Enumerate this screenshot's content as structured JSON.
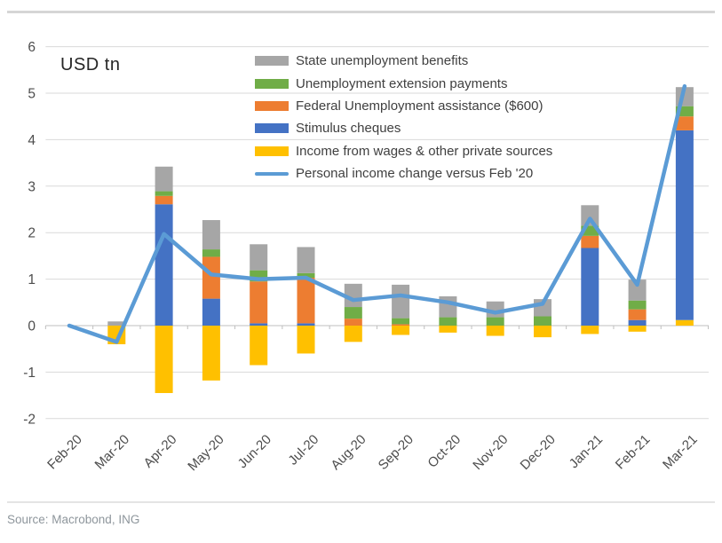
{
  "footer": {
    "source": "Source: Macrobond, ING"
  },
  "legend": {
    "items": [
      {
        "label": "State unemployment benefits",
        "color": "#a6a6a6",
        "kind": "bar",
        "icon": "gray-swatch"
      },
      {
        "label": "Unemployment extension payments",
        "color": "#70ad47",
        "kind": "bar",
        "icon": "green-swatch"
      },
      {
        "label": "Federal Unemployment assistance ($600)",
        "color": "#ed7d31",
        "kind": "bar",
        "icon": "orange-swatch"
      },
      {
        "label": "Stimulus cheques",
        "color": "#4472c4",
        "kind": "bar",
        "icon": "blue-swatch"
      },
      {
        "label": "Income from wages & other private sources",
        "color": "#ffc000",
        "kind": "bar",
        "icon": "yellow-swatch"
      },
      {
        "label": "Personal income change versus Feb '20",
        "color": "#5b9bd5",
        "kind": "line",
        "icon": "line-swatch"
      }
    ]
  },
  "chart_data": {
    "type": "bar",
    "subtype": "stacked-bars-with-line",
    "title": "",
    "unit_label": "USD tn",
    "xlabel": "",
    "ylabel": "USD tn",
    "ylim": [
      -2,
      6
    ],
    "y_ticks": [
      6,
      5,
      4,
      3,
      2,
      1,
      0,
      -1,
      -2
    ],
    "grid": true,
    "legend_position": "top-center",
    "categories": [
      "Feb-20",
      "Mar-20",
      "Apr-20",
      "May-20",
      "Jun-20",
      "Jul-20",
      "Aug-20",
      "Sep-20",
      "Oct-20",
      "Nov-20",
      "Dec-20",
      "Jan-21",
      "Feb-21",
      "Mar-21"
    ],
    "series": [
      {
        "name": "Income from wages & other private sources",
        "color": "#ffc000",
        "values": [
          0,
          -0.4,
          -1.45,
          -1.18,
          -0.85,
          -0.6,
          -0.35,
          -0.2,
          -0.15,
          -0.22,
          -0.25,
          -0.18,
          -0.13,
          0.12
        ]
      },
      {
        "name": "Stimulus cheques",
        "color": "#4472c4",
        "values": [
          0,
          0,
          2.61,
          0.58,
          0.05,
          0.05,
          0,
          0,
          0,
          0,
          0,
          1.67,
          0.12,
          4.08
        ]
      },
      {
        "name": "Federal Unemployment assistance ($600)",
        "color": "#ed7d31",
        "values": [
          0,
          0,
          0.18,
          0.9,
          0.9,
          0.98,
          0.15,
          0.03,
          0,
          0,
          0,
          0.26,
          0.23,
          0.3
        ]
      },
      {
        "name": "Unemployment extension payments",
        "color": "#70ad47",
        "values": [
          0,
          0,
          0.1,
          0.16,
          0.24,
          0.1,
          0.25,
          0.13,
          0.18,
          0.18,
          0.2,
          0.22,
          0.19,
          0.22
        ]
      },
      {
        "name": "State unemployment benefits",
        "color": "#a6a6a6",
        "values": [
          0,
          0.09,
          0.53,
          0.63,
          0.56,
          0.56,
          0.5,
          0.72,
          0.45,
          0.34,
          0.37,
          0.44,
          0.45,
          0.41
        ]
      }
    ],
    "line_series": {
      "name": "Personal income change versus Feb '20",
      "color": "#5b9bd5",
      "values": [
        0,
        -0.35,
        1.97,
        1.1,
        1.0,
        1.03,
        0.55,
        0.65,
        0.5,
        0.28,
        0.47,
        2.3,
        0.88,
        5.15
      ]
    },
    "colors": {
      "gridline": "#d9d9d9",
      "axis": "#bfbfbf",
      "tick_label": "#4d4d4d"
    }
  }
}
